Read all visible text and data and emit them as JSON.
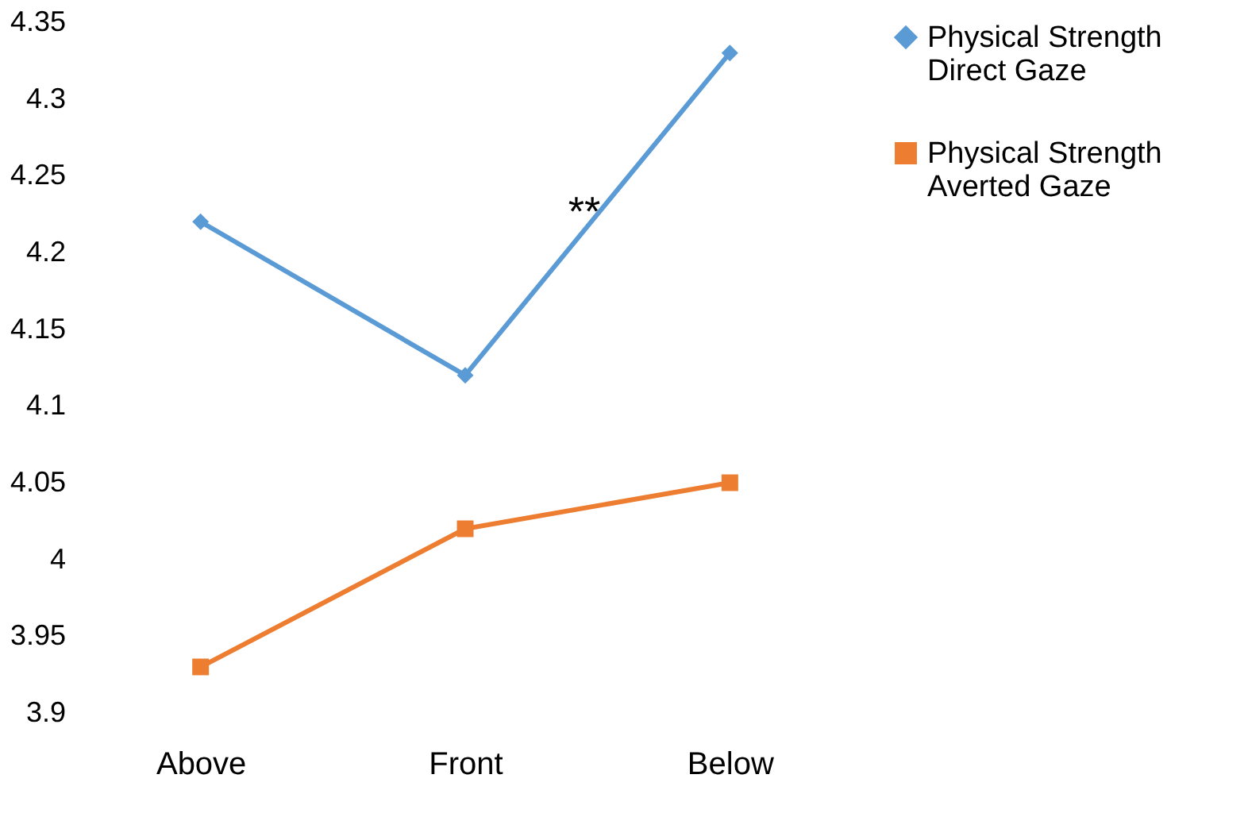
{
  "chart_data": {
    "type": "line",
    "categories": [
      "Above",
      "Front",
      "Below"
    ],
    "series": [
      {
        "name": "Physical Strength\nDirect Gaze",
        "color": "#5b9bd5",
        "marker": "diamond",
        "values": [
          4.22,
          4.12,
          4.33
        ]
      },
      {
        "name": "Physical Strength\nAverted Gaze",
        "color": "#ed7d31",
        "marker": "square",
        "values": [
          3.93,
          4.02,
          4.05
        ]
      }
    ],
    "ylim": [
      3.9,
      4.35
    ],
    "yticks": [
      3.9,
      3.95,
      4,
      4.05,
      4.1,
      4.15,
      4.2,
      4.25,
      4.3,
      4.35
    ],
    "grid": false,
    "legend": "right",
    "annotations": [
      "**"
    ]
  }
}
